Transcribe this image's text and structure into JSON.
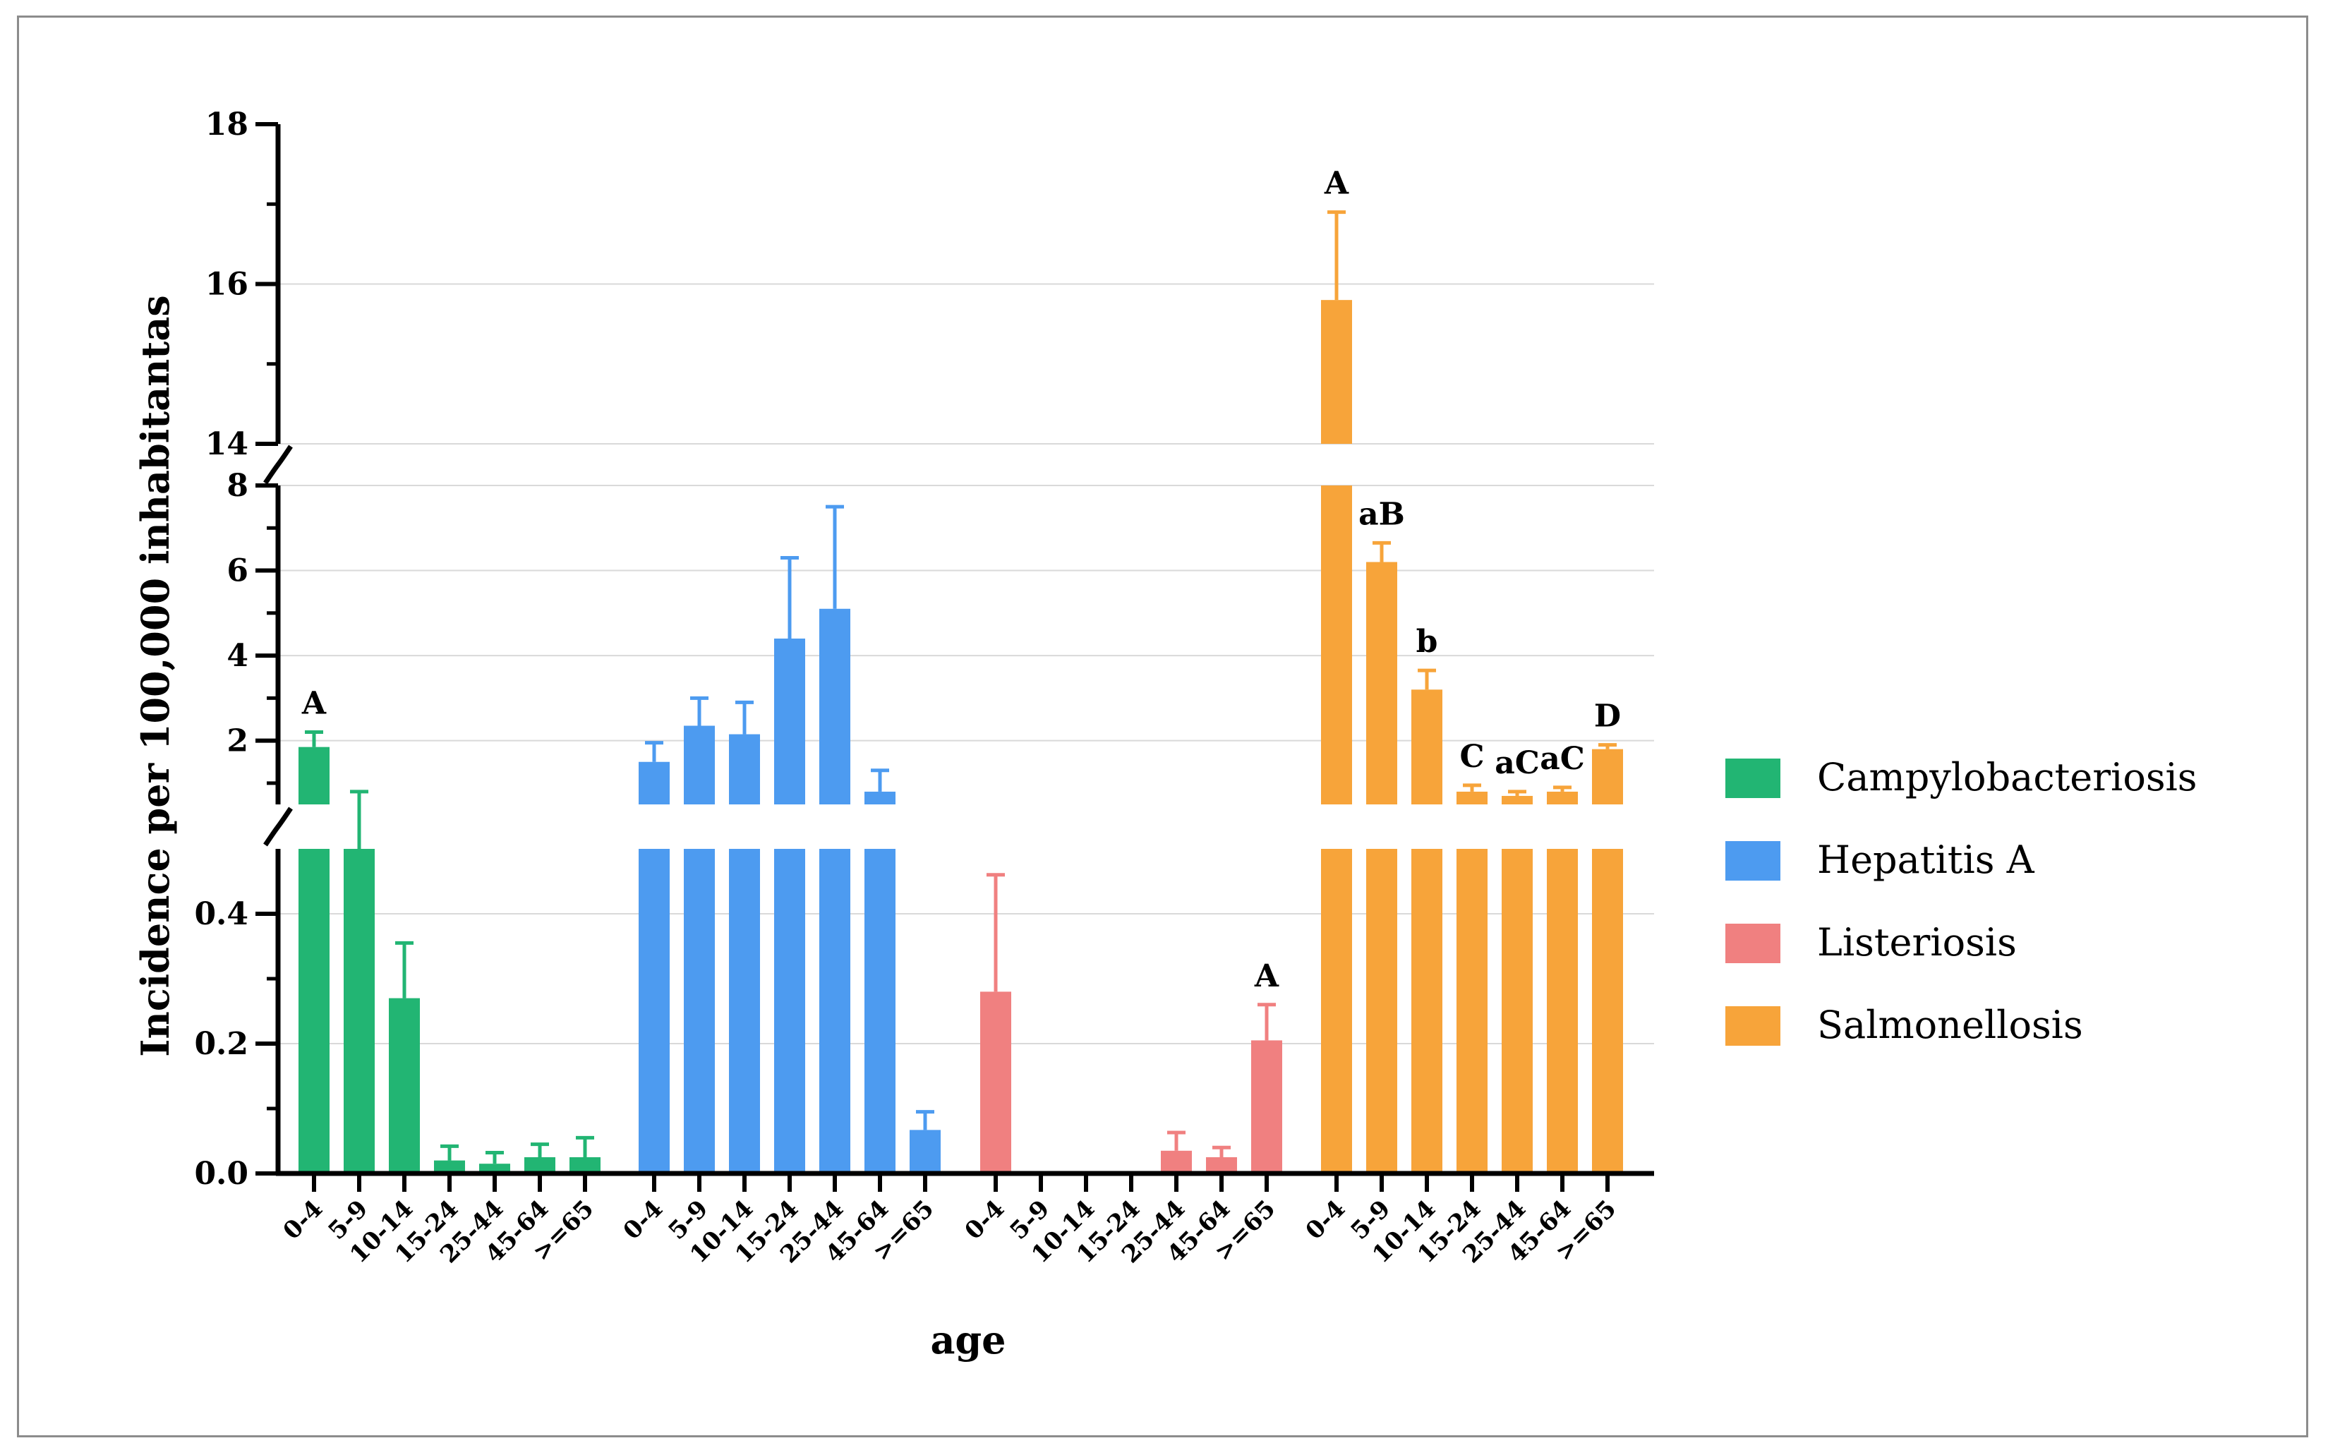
{
  "chart_data": {
    "type": "bar",
    "xlabel": "age",
    "ylabel": "Incidence per  100,000 inhabitantas",
    "y_axis_breaks": [
      [
        0,
        0.5
      ],
      [
        0.5,
        8
      ],
      [
        14,
        18
      ]
    ],
    "y_ticks": {
      "segment1": [
        "0.0",
        "0.2",
        "0.4"
      ],
      "segment2": [
        "2",
        "4",
        "6",
        "8"
      ],
      "segment3": [
        "14",
        "16",
        "18"
      ]
    },
    "grid": "horizontal",
    "legend_position": "right",
    "categories": [
      "0-4",
      "5-9",
      "10-14",
      "15-24",
      "25-44",
      "45-64",
      ">=65"
    ],
    "series": [
      {
        "name": "Campylobacteriosis",
        "color": "#22b573",
        "values": [
          1.85,
          0.5,
          0.27,
          0.02,
          0.015,
          0.025,
          0.025
        ],
        "errors": [
          0.35,
          0.3,
          0.085,
          0.022,
          0.017,
          0.02,
          0.03
        ],
        "annotations": [
          "A",
          "",
          "",
          "",
          "",
          "",
          ""
        ]
      },
      {
        "name": "Hepatitis A",
        "color": "#4d9bf0",
        "values": [
          1.5,
          2.35,
          2.15,
          4.4,
          5.1,
          0.8,
          0.067
        ],
        "errors": [
          0.45,
          0.65,
          0.75,
          1.9,
          2.4,
          0.5,
          0.028
        ],
        "annotations": [
          "",
          "",
          "",
          "",
          "",
          "",
          ""
        ]
      },
      {
        "name": "Listeriosis",
        "color": "#f08080",
        "values": [
          0.28,
          0,
          0,
          0,
          0.035,
          0.025,
          0.205
        ],
        "errors": [
          0.18,
          0,
          0,
          0,
          0.028,
          0.015,
          0.055
        ],
        "annotations": [
          "",
          "",
          "",
          "",
          "",
          "",
          "A"
        ]
      },
      {
        "name": "Salmonellosis",
        "color": "#f7a43a",
        "values": [
          15.8,
          6.2,
          3.2,
          0.8,
          0.7,
          0.8,
          1.8
        ],
        "errors": [
          1.1,
          0.45,
          0.45,
          0.15,
          0.1,
          0.1,
          0.1
        ],
        "annotations": [
          "A",
          "aB",
          "b",
          "C",
          "aC",
          "aC",
          "D"
        ]
      }
    ]
  }
}
